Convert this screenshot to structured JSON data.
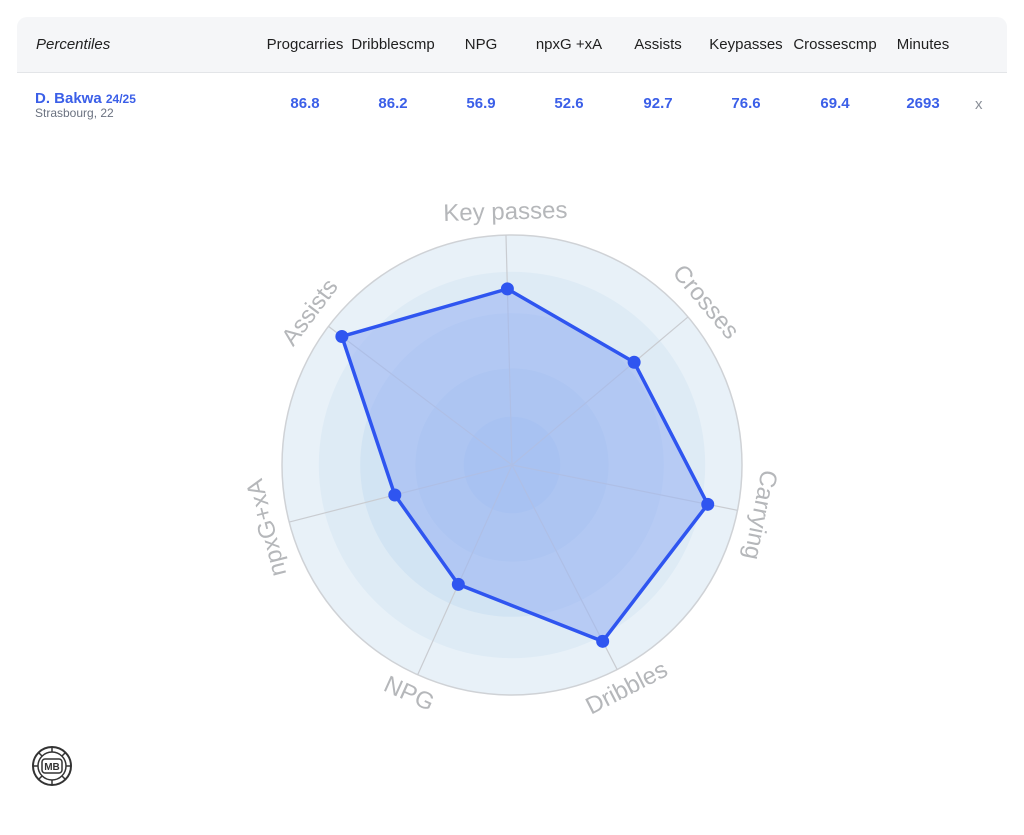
{
  "table": {
    "first_header": "Percentiles",
    "columns": [
      {
        "label_lines": [
          "Prog",
          "carries"
        ]
      },
      {
        "label_lines": [
          "Dribbles",
          "cmp"
        ]
      },
      {
        "label_lines": [
          "NPG"
        ]
      },
      {
        "label_lines": [
          "npxG +xA"
        ]
      },
      {
        "label_lines": [
          "Assists"
        ]
      },
      {
        "label_lines": [
          "Key",
          "passes"
        ]
      },
      {
        "label_lines": [
          "Crosses",
          "cmp"
        ]
      },
      {
        "label_lines": [
          "Minutes"
        ]
      }
    ],
    "player": {
      "name": "D. Bakwa",
      "season": "24/25",
      "subtitle": "Strasbourg, 22",
      "values": [
        "86.8",
        "86.2",
        "56.9",
        "52.6",
        "92.7",
        "76.6",
        "69.4",
        "2693"
      ]
    },
    "remove_label": "x"
  },
  "chart_data": {
    "type": "radar",
    "axes": [
      "Key passes",
      "Crosses",
      "Carrying",
      "Dribbles",
      "NPG",
      "npxG+xA",
      "Assists"
    ],
    "series": [
      {
        "values": [
          76.6,
          69.4,
          86.8,
          86.2,
          56.9,
          52.6,
          92.7
        ]
      }
    ],
    "range": [
      0,
      100
    ],
    "series_color": "#2f55f0",
    "fill_color": "#9db5f4",
    "ring_colors": [
      "#b9d5ef",
      "#c6ddf1",
      "#d2e4f3",
      "#deebf5",
      "#e8f1f8"
    ]
  },
  "logo": {
    "text": "MB"
  }
}
